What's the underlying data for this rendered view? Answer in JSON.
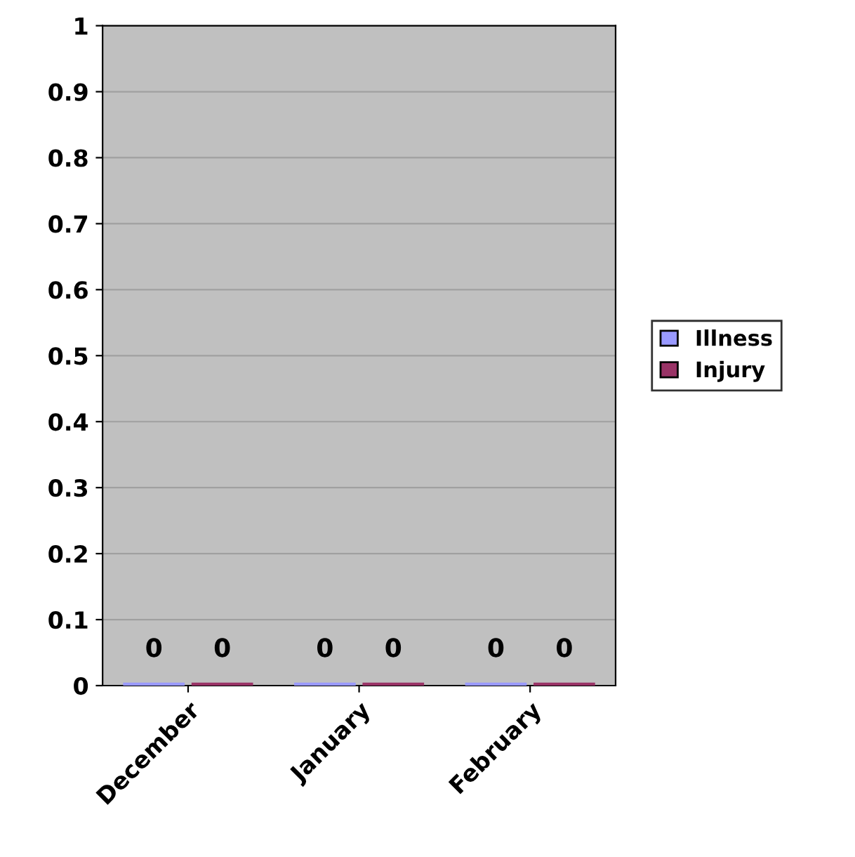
{
  "chart_data": {
    "type": "bar",
    "categories": [
      "December",
      "January",
      "February"
    ],
    "series": [
      {
        "name": "Illness",
        "color": "#9999ff",
        "values": [
          0,
          0,
          0
        ]
      },
      {
        "name": "Injury",
        "color": "#993366",
        "values": [
          0,
          0,
          0
        ]
      }
    ],
    "ylim": [
      0,
      1
    ],
    "yticks": [
      0,
      0.1,
      0.2,
      0.3,
      0.4,
      0.5,
      0.6,
      0.7,
      0.8,
      0.9,
      1
    ],
    "grid": "y",
    "legend": "right",
    "data_labels": true
  }
}
